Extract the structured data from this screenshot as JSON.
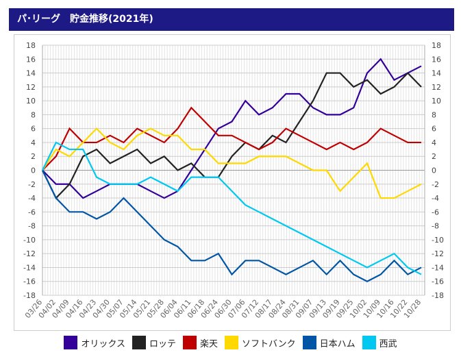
{
  "title": "パ･リーグ　貯金推移(2021年)",
  "chart_data": {
    "type": "line",
    "title": "パ･リーグ　貯金推移(2021年)",
    "xlabel": "",
    "ylabel": "",
    "ylim": [
      -18,
      18
    ],
    "yticks": [
      18,
      16,
      14,
      12,
      10,
      8,
      6,
      4,
      2,
      0,
      -2,
      -4,
      -6,
      -8,
      -10,
      -12,
      -14,
      -16,
      -18
    ],
    "grid": true,
    "legend": "bottom",
    "categories": [
      "03/26",
      "04/02",
      "04/09",
      "04/16",
      "04/23",
      "04/30",
      "05/07",
      "05/14",
      "05/21",
      "05/28",
      "06/04",
      "06/11",
      "06/18",
      "06/24",
      "06/30",
      "07/06",
      "07/12",
      "08/17",
      "08/24",
      "08/31",
      "09/07",
      "09/13",
      "09/19",
      "09/25",
      "10/02",
      "10/09",
      "10/16",
      "10/22",
      "10/28"
    ],
    "series": [
      {
        "name": "オリックス",
        "color": "#330099",
        "values": [
          0,
          -2,
          -2,
          -4,
          -3,
          -2,
          -2,
          -2,
          -3,
          -4,
          -3,
          0,
          3,
          6,
          7,
          10,
          8,
          9,
          11,
          11,
          9,
          8,
          8,
          9,
          14,
          16,
          13,
          14,
          15
        ]
      },
      {
        "name": "ロッテ",
        "color": "#222222",
        "values": [
          0,
          -4,
          -2,
          2,
          3,
          1,
          2,
          3,
          1,
          2,
          0,
          1,
          -1,
          -1,
          2,
          4,
          3,
          5,
          4,
          7,
          10,
          14,
          14,
          12,
          13,
          11,
          12,
          14,
          12
        ]
      },
      {
        "name": "楽天",
        "color": "#bf0000",
        "values": [
          0,
          2,
          6,
          4,
          4,
          5,
          4,
          6,
          5,
          4,
          6,
          9,
          7,
          5,
          5,
          4,
          3,
          4,
          6,
          5,
          4,
          3,
          4,
          3,
          4,
          6,
          5,
          4,
          4
        ]
      },
      {
        "name": "ソフトバンク",
        "color": "#ffd800",
        "values": [
          0,
          3,
          2,
          4,
          6,
          4,
          3,
          5,
          6,
          5,
          5,
          3,
          3,
          1,
          1,
          1,
          2,
          2,
          2,
          1,
          0,
          0,
          -3,
          -1,
          1,
          -4,
          -4,
          -3,
          -2
        ]
      },
      {
        "name": "日本ハム",
        "color": "#0055a5",
        "values": [
          0,
          -4,
          -6,
          -6,
          -7,
          -6,
          -4,
          -6,
          -8,
          -10,
          -11,
          -13,
          -13,
          -12,
          -15,
          -13,
          -13,
          -14,
          -15,
          -14,
          -13,
          -15,
          -13,
          -15,
          -16,
          -15,
          -13,
          -15,
          -14
        ]
      },
      {
        "name": "西武",
        "color": "#00c8f0",
        "values": [
          0,
          4,
          3,
          3,
          -1,
          -2,
          -2,
          -2,
          -1,
          -2,
          -3,
          -1,
          -1,
          -1,
          -3,
          -5,
          -6,
          -7,
          -8,
          -9,
          -10,
          -11,
          -12,
          -13,
          -14,
          -13,
          -12,
          -14,
          -15
        ]
      }
    ]
  }
}
